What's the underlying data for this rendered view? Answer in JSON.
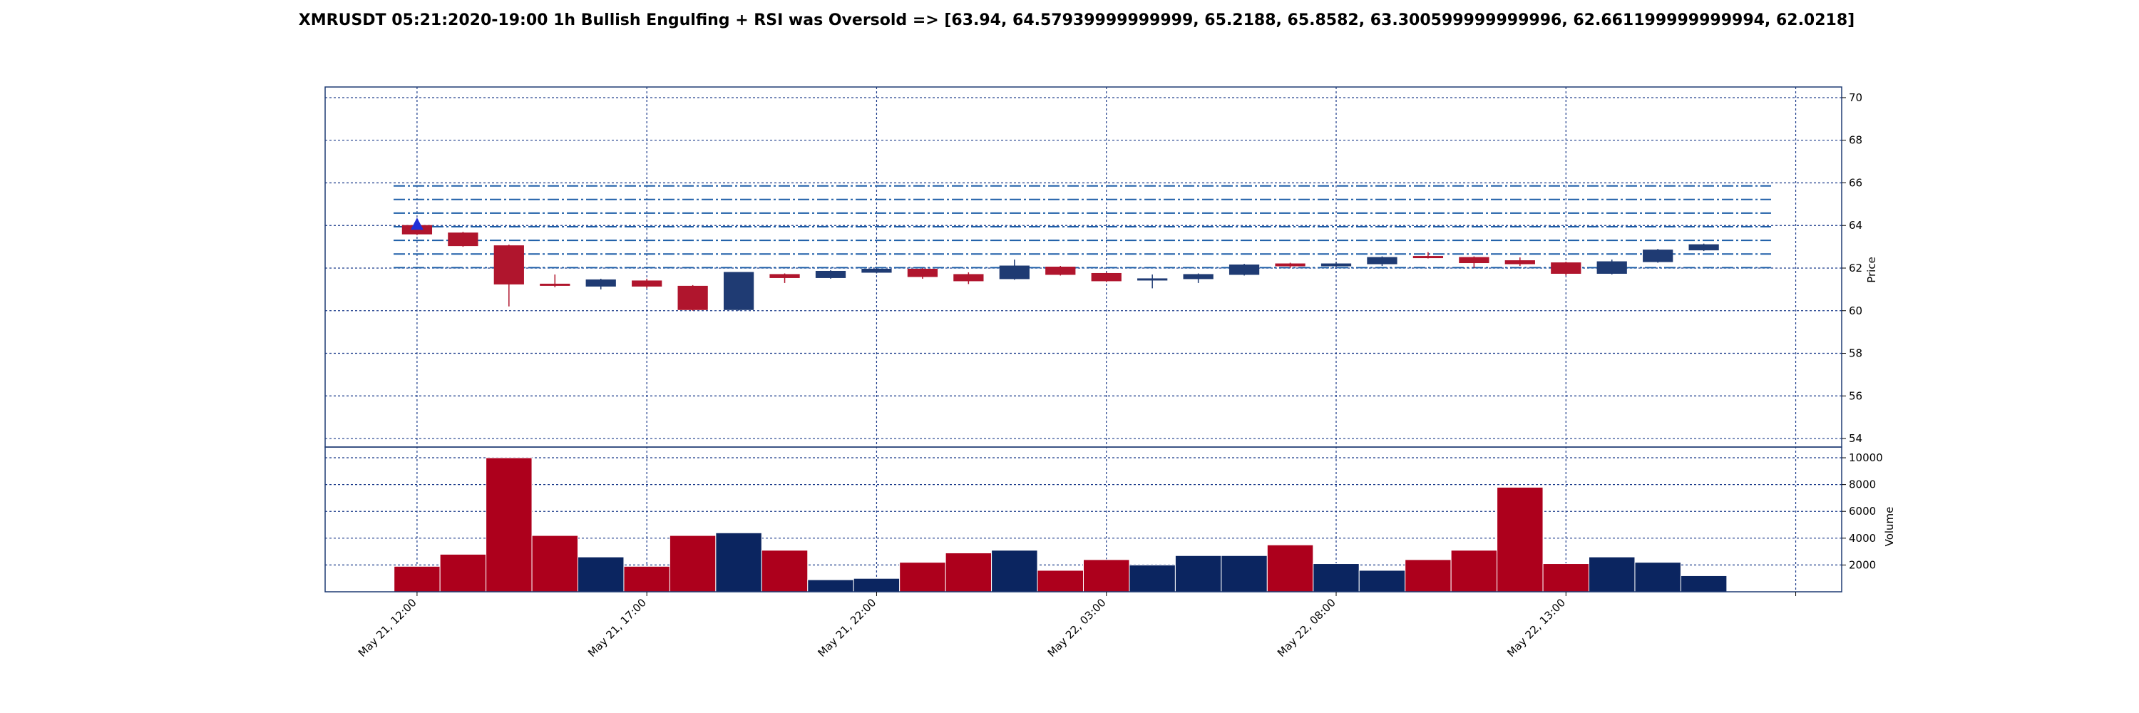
{
  "title": "XMRUSDT 05:21:2020-19:00 1h Bullish Engulfing + RSI was Oversold => [63.94, 64.57939999999999, 65.2188, 65.8582, 63.300599999999996, 62.661199999999994, 62.0218]",
  "colors": {
    "up": "#1f3b73",
    "down": "#b0152d",
    "volume_up": "#0b2560",
    "volume_down": "#ad001c",
    "grid": "#1a3a8a",
    "level_line": "#1f5fa8",
    "marker": "#1f2fd8",
    "frame": "#1f3b73"
  },
  "chart_data": {
    "type": "candlestick",
    "title": "XMRUSDT 05:21:2020-19:00 1h Bullish Engulfing + RSI was Oversold => [63.94, 64.57939999999999, 65.2188, 65.8582, 63.300599999999996, 62.661199999999994, 62.0218]",
    "price_panel": {
      "ylabel": "Price",
      "ylim": [
        53.6,
        70.5
      ],
      "yticks": [
        "54",
        "56",
        "58",
        "60",
        "62",
        "64",
        "66",
        "68",
        "70"
      ],
      "grid": true
    },
    "volume_panel": {
      "ylabel": "Volume",
      "ylim": [
        0,
        10800
      ],
      "yticks": [
        "2000",
        "4000",
        "6000",
        "8000",
        "10000"
      ],
      "grid": true
    },
    "xlim": [
      -2,
      31
    ],
    "x_ticks": [
      {
        "index": 0,
        "label": "May 21, 12:00"
      },
      {
        "index": 5,
        "label": "May 21, 17:00"
      },
      {
        "index": 10,
        "label": "May 21, 22:00"
      },
      {
        "index": 15,
        "label": "May 22, 03:00"
      },
      {
        "index": 20,
        "label": "May 22, 08:00"
      },
      {
        "index": 25,
        "label": "May 22, 13:00"
      },
      {
        "index": 30,
        "label": ""
      }
    ],
    "candles": [
      {
        "open": 64.0,
        "high": 64.1,
        "low": 63.55,
        "close": 63.6
      },
      {
        "open": 63.65,
        "high": 63.7,
        "low": 63.0,
        "close": 63.05
      },
      {
        "open": 63.05,
        "high": 63.1,
        "low": 60.2,
        "close": 61.25
      },
      {
        "open": 61.25,
        "high": 61.7,
        "low": 61.1,
        "close": 61.2
      },
      {
        "open": 61.15,
        "high": 61.5,
        "low": 61.0,
        "close": 61.45
      },
      {
        "open": 61.4,
        "high": 61.5,
        "low": 61.05,
        "close": 61.15
      },
      {
        "open": 61.15,
        "high": 61.2,
        "low": 60.0,
        "close": 60.05
      },
      {
        "open": 60.05,
        "high": 61.8,
        "low": 60.0,
        "close": 61.8
      },
      {
        "open": 61.7,
        "high": 61.75,
        "low": 61.3,
        "close": 61.55
      },
      {
        "open": 61.55,
        "high": 61.9,
        "low": 61.5,
        "close": 61.85
      },
      {
        "open": 61.8,
        "high": 62.0,
        "low": 61.75,
        "close": 61.95
      },
      {
        "open": 61.95,
        "high": 62.0,
        "low": 61.5,
        "close": 61.6
      },
      {
        "open": 61.7,
        "high": 61.8,
        "low": 61.25,
        "close": 61.4
      },
      {
        "open": 61.5,
        "high": 62.4,
        "low": 61.45,
        "close": 62.1
      },
      {
        "open": 62.05,
        "high": 62.1,
        "low": 61.65,
        "close": 61.7
      },
      {
        "open": 61.75,
        "high": 61.8,
        "low": 61.35,
        "close": 61.4
      },
      {
        "open": 61.45,
        "high": 61.7,
        "low": 61.05,
        "close": 61.5
      },
      {
        "open": 61.5,
        "high": 61.75,
        "low": 61.3,
        "close": 61.7
      },
      {
        "open": 61.7,
        "high": 62.2,
        "low": 61.65,
        "close": 62.15
      },
      {
        "open": 62.2,
        "high": 62.25,
        "low": 62.0,
        "close": 62.1
      },
      {
        "open": 62.1,
        "high": 62.3,
        "low": 62.05,
        "close": 62.2
      },
      {
        "open": 62.2,
        "high": 62.55,
        "low": 62.1,
        "close": 62.5
      },
      {
        "open": 62.55,
        "high": 62.75,
        "low": 62.45,
        "close": 62.5
      },
      {
        "open": 62.5,
        "high": 62.55,
        "low": 62.0,
        "close": 62.25
      },
      {
        "open": 62.35,
        "high": 62.5,
        "low": 62.1,
        "close": 62.2
      },
      {
        "open": 62.25,
        "high": 62.3,
        "low": 61.65,
        "close": 61.75
      },
      {
        "open": 61.75,
        "high": 62.4,
        "low": 61.7,
        "close": 62.3
      },
      {
        "open": 62.3,
        "high": 62.9,
        "low": 62.25,
        "close": 62.85
      },
      {
        "open": 62.85,
        "high": 63.15,
        "low": 62.8,
        "close": 63.1
      }
    ],
    "volumes": [
      1900,
      2800,
      10000,
      4200,
      2600,
      1900,
      4200,
      4400,
      3100,
      900,
      1000,
      2200,
      2900,
      3100,
      1600,
      2400,
      2000,
      2700,
      2700,
      3500,
      2100,
      1600,
      2400,
      3100,
      7800,
      2100,
      2600,
      2200,
      1200
    ],
    "level_lines": [
      63.94,
      64.57939999999999,
      65.2188,
      65.8582,
      63.300599999999996,
      62.661199999999994,
      62.0218
    ],
    "marker": {
      "index": 0,
      "value": 64.0,
      "shape": "triangle-up"
    }
  }
}
